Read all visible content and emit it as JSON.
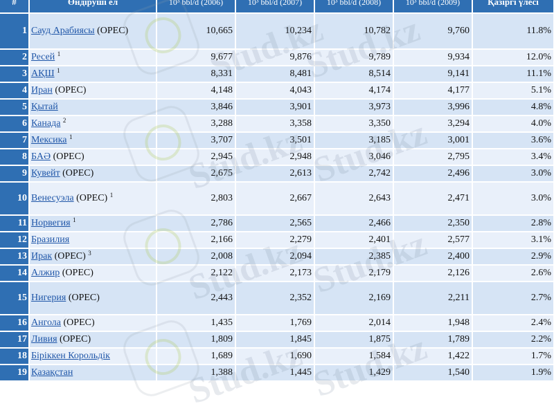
{
  "header": {
    "rank": "#",
    "producer": "Өндіруші ел",
    "year2006": "10³ bbl/d (2006)",
    "year2007": "10³ bbl/d (2007)",
    "year2008": "10³ bbl/d (2008)",
    "year2009": "10³ bbl/d (2009)",
    "share": "Қазіргі үлесі"
  },
  "rows": [
    {
      "rank": "1",
      "country": "Сауд Арабиясы",
      "extra": " (OPEC)",
      "note": "",
      "v2006": "10,665",
      "v2007": "10,234",
      "v2008": "10,782",
      "v2009": "9,760",
      "share": "11.8%"
    },
    {
      "rank": "2",
      "country": "Ресей",
      "extra": "",
      "note": "1",
      "v2006": "9,677",
      "v2007": "9,876",
      "v2008": "9,789",
      "v2009": "9,934",
      "share": "12.0%"
    },
    {
      "rank": "3",
      "country": "АҚШ",
      "extra": "",
      "note": "1",
      "v2006": "8,331",
      "v2007": "8,481",
      "v2008": "8,514",
      "v2009": "9,141",
      "share": "11.1%"
    },
    {
      "rank": "4",
      "country": "Иран",
      "extra": " (OPEC)",
      "note": "",
      "v2006": "4,148",
      "v2007": "4,043",
      "v2008": "4,174",
      "v2009": "4,177",
      "share": "5.1%"
    },
    {
      "rank": "5",
      "country": "Қытай",
      "extra": "",
      "note": "",
      "v2006": "3,846",
      "v2007": "3,901",
      "v2008": "3,973",
      "v2009": "3,996",
      "share": "4.8%"
    },
    {
      "rank": "6",
      "country": "Канада",
      "extra": "",
      "note": "2",
      "v2006": "3,288",
      "v2007": "3,358",
      "v2008": "3,350",
      "v2009": "3,294",
      "share": "4.0%"
    },
    {
      "rank": "7",
      "country": "Мексика",
      "extra": "",
      "note": "1",
      "v2006": "3,707",
      "v2007": "3,501",
      "v2008": "3,185",
      "v2009": "3,001",
      "share": "3.6%"
    },
    {
      "rank": "8",
      "country": "БАӘ",
      "extra": " (OPEC)",
      "note": "",
      "v2006": "2,945",
      "v2007": "2,948",
      "v2008": "3,046",
      "v2009": "2,795",
      "share": "3.4%"
    },
    {
      "rank": "9",
      "country": "Кувейт",
      "extra": " (OPEC)",
      "note": "",
      "v2006": "2,675",
      "v2007": "2,613",
      "v2008": "2,742",
      "v2009": "2,496",
      "share": "3.0%"
    },
    {
      "rank": "10",
      "country": "Венесуэла",
      "extra": " (OPEC)",
      "note": "1",
      "v2006": "2,803",
      "v2007": "2,667",
      "v2008": "2,643",
      "v2009": "2,471",
      "share": "3.0%"
    },
    {
      "rank": "11",
      "country": "Норвегия",
      "extra": "",
      "note": "1",
      "v2006": "2,786",
      "v2007": "2,565",
      "v2008": "2,466",
      "v2009": "2,350",
      "share": "2.8%"
    },
    {
      "rank": "12",
      "country": "Бразилия",
      "extra": "",
      "note": "",
      "v2006": "2,166",
      "v2007": "2,279",
      "v2008": "2,401",
      "v2009": "2,577",
      "share": "3.1%"
    },
    {
      "rank": "13",
      "country": "Ирак",
      "extra": " (OPEC)",
      "note": "3",
      "v2006": "2,008",
      "v2007": "2,094",
      "v2008": "2,385",
      "v2009": "2,400",
      "share": "2.9%"
    },
    {
      "rank": "14",
      "country": "Алжир",
      "extra": " (OPEC)",
      "note": "",
      "v2006": "2,122",
      "v2007": "2,173",
      "v2008": "2,179",
      "v2009": "2,126",
      "share": "2.6%"
    },
    {
      "rank": "15",
      "country": "Нигерия",
      "extra": " (OPEC)",
      "note": "",
      "v2006": "2,443",
      "v2007": "2,352",
      "v2008": "2,169",
      "v2009": "2,211",
      "share": "2.7%"
    },
    {
      "rank": "16",
      "country": "Ангола",
      "extra": " (OPEC)",
      "note": "",
      "v2006": "1,435",
      "v2007": "1,769",
      "v2008": "2,014",
      "v2009": "1,948",
      "share": "2.4%"
    },
    {
      "rank": "17",
      "country": "Ливия",
      "extra": " (OPEC)",
      "note": "",
      "v2006": "1,809",
      "v2007": "1,845",
      "v2008": "1,875",
      "v2009": "1,789",
      "share": "2.2%"
    },
    {
      "rank": "18",
      "country": "Біріккен Корольдік",
      "extra": "",
      "note": "",
      "v2006": "1,689",
      "v2007": "1,690",
      "v2008": "1,584",
      "v2009": "1,422",
      "share": "1.7%"
    },
    {
      "rank": "19",
      "country": "Қазақстан",
      "extra": "",
      "note": "",
      "v2006": "1,388",
      "v2007": "1,445",
      "v2008": "1,429",
      "v2009": "1,540",
      "share": "1.9%"
    }
  ],
  "watermark": {
    "text": "Stud.kz",
    "colors": {
      "header_bg": "#2f6fb3",
      "row_a": "#d6e4f5",
      "row_b": "#e9f0fa",
      "link": "#1f56a8"
    },
    "icon": "hummingbird-logo"
  }
}
